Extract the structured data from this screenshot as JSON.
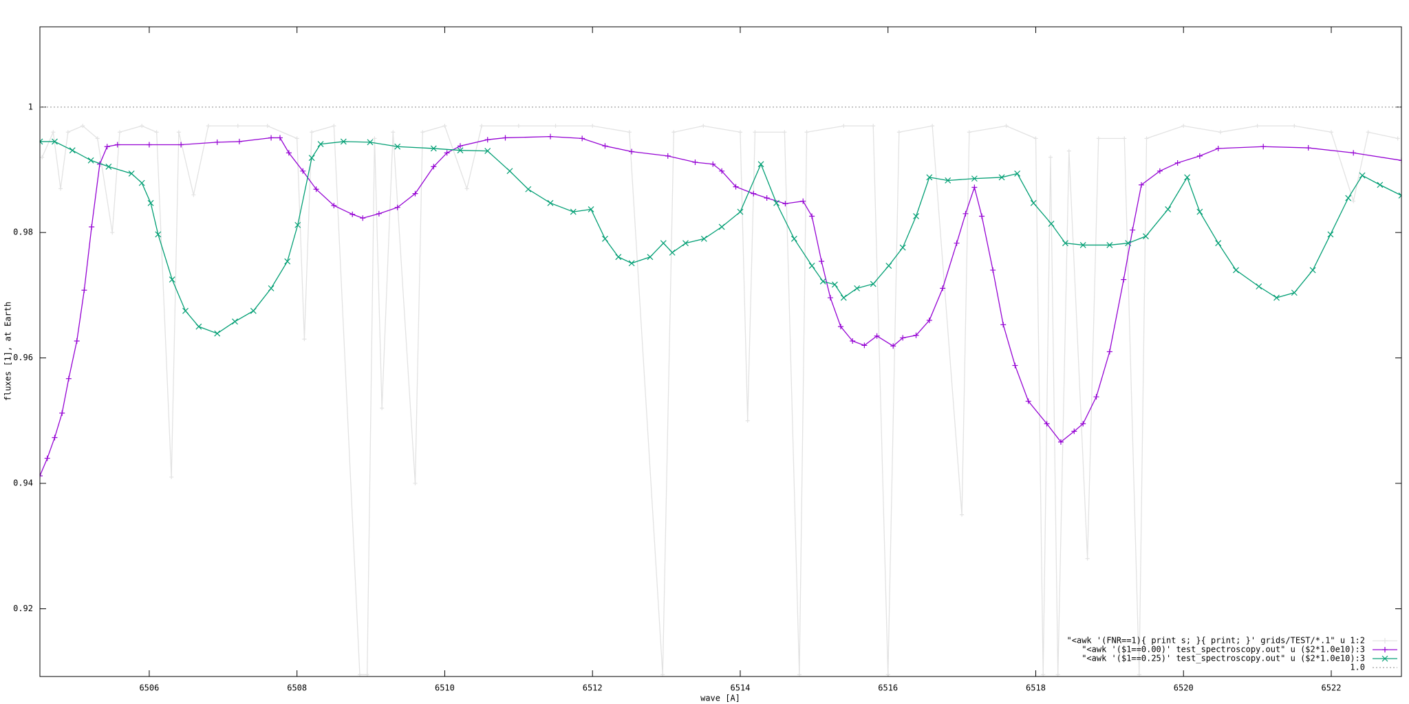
{
  "chart_data": {
    "type": "line",
    "xlabel": "wave [A]",
    "ylabel": "fluxes [1], at Earth",
    "xlim": [
      6504.52,
      6522.95
    ],
    "ylim": [
      0.9092,
      1.0128
    ],
    "xticks": [
      6506,
      6508,
      6510,
      6512,
      6514,
      6516,
      6518,
      6520,
      6522
    ],
    "yticks": [
      0.92,
      0.94,
      0.96,
      0.98,
      1
    ],
    "legend": "bottom-right",
    "series": [
      {
        "name": "\"<awk '(FNR==1){ print s; }{ print; }' grids/TEST/*.1\" u 1:2",
        "color": "#e2e2e2",
        "x": [
          6504.55,
          6504.7,
          6504.8,
          6504.9,
          6505.1,
          6505.3,
          6505.5,
          6505.6,
          6505.9,
          6506.1,
          6506.3,
          6506.4,
          6506.6,
          6506.8,
          6507.2,
          6507.6,
          6508.0,
          6508.1,
          6508.2,
          6508.5,
          6508.85,
          6508.95,
          6509.05,
          6509.15,
          6509.3,
          6509.6,
          6509.7,
          6510.0,
          6510.3,
          6510.5,
          6511.0,
          6511.5,
          6512.0,
          6512.5,
          6512.95,
          6513.1,
          6513.5,
          6514.0,
          6514.1,
          6514.2,
          6514.6,
          6514.8,
          6514.9,
          6515.4,
          6515.8,
          6516.0,
          6516.15,
          6516.6,
          6517.0,
          6517.1,
          6517.6,
          6518.0,
          6518.1,
          6518.2,
          6518.3,
          6518.45,
          6518.7,
          6518.85,
          6519.2,
          6519.4,
          6519.5,
          6520.0,
          6520.5,
          6521.0,
          6521.5,
          6522.0,
          6522.3,
          6522.5,
          6522.9
        ],
        "values": [
          0.992,
          0.996,
          0.987,
          0.996,
          0.997,
          0.995,
          0.98,
          0.996,
          0.997,
          0.996,
          0.941,
          0.996,
          0.986,
          0.997,
          0.997,
          0.997,
          0.995,
          0.963,
          0.996,
          0.997,
          0.9095,
          0.9095,
          0.995,
          0.952,
          0.996,
          0.94,
          0.996,
          0.997,
          0.987,
          0.997,
          0.997,
          0.997,
          0.997,
          0.996,
          0.9095,
          0.996,
          0.997,
          0.996,
          0.95,
          0.996,
          0.996,
          0.9095,
          0.996,
          0.997,
          0.997,
          0.9095,
          0.996,
          0.997,
          0.935,
          0.996,
          0.997,
          0.995,
          0.9095,
          0.992,
          0.9095,
          0.993,
          0.928,
          0.995,
          0.995,
          0.9095,
          0.995,
          0.997,
          0.996,
          0.997,
          0.997,
          0.996,
          0.985,
          0.996,
          0.995
        ]
      },
      {
        "name": "\"<awk '($1==0.00)' test_spectroscopy.out\" u ($2*1.0e10):3",
        "color": "#9400d3",
        "x": [
          6504.52,
          6504.62,
          6504.72,
          6504.82,
          6504.91,
          6505.02,
          6505.12,
          6505.22,
          6505.33,
          6505.43,
          6505.57,
          6506,
          6506.43,
          6506.92,
          6507.22,
          6507.65,
          6507.77,
          6507.89,
          6508.08,
          6508.26,
          6508.5,
          6508.75,
          6508.89,
          6509.11,
          6509.36,
          6509.6,
          6509.85,
          6510.03,
          6510.21,
          6510.58,
          6510.82,
          6511.43,
          6511.86,
          6512.17,
          6512.53,
          6513.02,
          6513.39,
          6513.63,
          6513.75,
          6513.94,
          6514.18,
          6514.36,
          6514.61,
          6514.85,
          6514.97,
          6515.1,
          6515.22,
          6515.36,
          6515.52,
          6515.68,
          6515.85,
          6516.07,
          6516.2,
          6516.38,
          6516.56,
          6516.74,
          6516.93,
          6517.05,
          6517.17,
          6517.27,
          6517.42,
          6517.56,
          6517.72,
          6517.9,
          6518.15,
          6518.34,
          6518.52,
          6518.64,
          6518.82,
          6519.0,
          6519.19,
          6519.31,
          6519.43,
          6519.68,
          6519.92,
          6520.22,
          6520.47,
          6521.08,
          6521.69,
          6522.3,
          6522.95
        ],
        "values": [
          0.9412,
          0.944,
          0.9473,
          0.9512,
          0.9567,
          0.9627,
          0.9708,
          0.9809,
          0.9909,
          0.9937,
          0.994,
          0.994,
          0.994,
          0.9944,
          0.9945,
          0.9951,
          0.9951,
          0.9927,
          0.9898,
          0.9869,
          0.9843,
          0.9829,
          0.9823,
          0.983,
          0.984,
          0.9862,
          0.9905,
          0.9927,
          0.9938,
          0.9948,
          0.9951,
          0.9953,
          0.995,
          0.9938,
          0.9929,
          0.9922,
          0.9912,
          0.9909,
          0.9898,
          0.9873,
          0.9862,
          0.9855,
          0.9846,
          0.985,
          0.9826,
          0.9754,
          0.9696,
          0.965,
          0.9627,
          0.962,
          0.9635,
          0.9619,
          0.9632,
          0.9636,
          0.966,
          0.9711,
          0.9783,
          0.983,
          0.9872,
          0.9826,
          0.974,
          0.9653,
          0.9588,
          0.9531,
          0.9495,
          0.9466,
          0.9483,
          0.9495,
          0.9538,
          0.961,
          0.9725,
          0.9804,
          0.9876,
          0.9898,
          0.9911,
          0.9922,
          0.9934,
          0.9937,
          0.9935,
          0.9927,
          0.9915
        ]
      },
      {
        "name": "\"<awk '($1==0.25)' test_spectroscopy.out\" u ($2*1.0e10):3",
        "color": "#009e73",
        "x": [
          6504.52,
          6504.72,
          6504.96,
          6505.21,
          6505.45,
          6505.76,
          6505.9,
          6506.02,
          6506.12,
          6506.31,
          6506.49,
          6506.67,
          6506.92,
          6507.16,
          6507.41,
          6507.65,
          6507.87,
          6508.01,
          6508.2,
          6508.32,
          6508.63,
          6508.99,
          6509.36,
          6509.85,
          6510.21,
          6510.58,
          6510.88,
          6511.13,
          6511.43,
          6511.74,
          6511.98,
          6512.17,
          6512.35,
          6512.53,
          6512.78,
          6512.96,
          6513.08,
          6513.26,
          6513.51,
          6513.75,
          6514.0,
          6514.28,
          6514.49,
          6514.73,
          6514.97,
          6515.12,
          6515.28,
          6515.4,
          6515.58,
          6515.8,
          6516.01,
          6516.2,
          6516.38,
          6516.56,
          6516.81,
          6517.17,
          6517.54,
          6517.75,
          6517.97,
          6518.21,
          6518.4,
          6518.64,
          6519.0,
          6519.25,
          6519.49,
          6519.79,
          6520.05,
          6520.22,
          6520.47,
          6520.71,
          6521.02,
          6521.26,
          6521.5,
          6521.75,
          6521.99,
          6522.23,
          6522.42,
          6522.66,
          6522.95
        ],
        "values": [
          0.9945,
          0.9945,
          0.9931,
          0.9915,
          0.9905,
          0.9894,
          0.9879,
          0.9847,
          0.9797,
          0.9725,
          0.9675,
          0.965,
          0.9639,
          0.9658,
          0.9675,
          0.9711,
          0.9754,
          0.9812,
          0.9919,
          0.9941,
          0.9945,
          0.9944,
          0.9937,
          0.9934,
          0.9931,
          0.993,
          0.9898,
          0.9869,
          0.9847,
          0.9833,
          0.9837,
          0.979,
          0.9761,
          0.9751,
          0.9761,
          0.9783,
          0.9768,
          0.9783,
          0.979,
          0.9809,
          0.9833,
          0.9909,
          0.9847,
          0.979,
          0.9747,
          0.9722,
          0.9717,
          0.9696,
          0.9711,
          0.9718,
          0.9747,
          0.9776,
          0.9826,
          0.9888,
          0.9883,
          0.9886,
          0.9888,
          0.9894,
          0.9847,
          0.9814,
          0.9783,
          0.978,
          0.978,
          0.9783,
          0.9794,
          0.9837,
          0.9888,
          0.9833,
          0.9783,
          0.974,
          0.9714,
          0.9696,
          0.9704,
          0.974,
          0.9797,
          0.9855,
          0.9891,
          0.9876,
          0.9859
        ]
      },
      {
        "name": "1.0",
        "color": "#a0a0a0",
        "dashed": true,
        "x": [
          6504.52,
          6522.95
        ],
        "values": [
          1,
          1
        ]
      }
    ]
  }
}
